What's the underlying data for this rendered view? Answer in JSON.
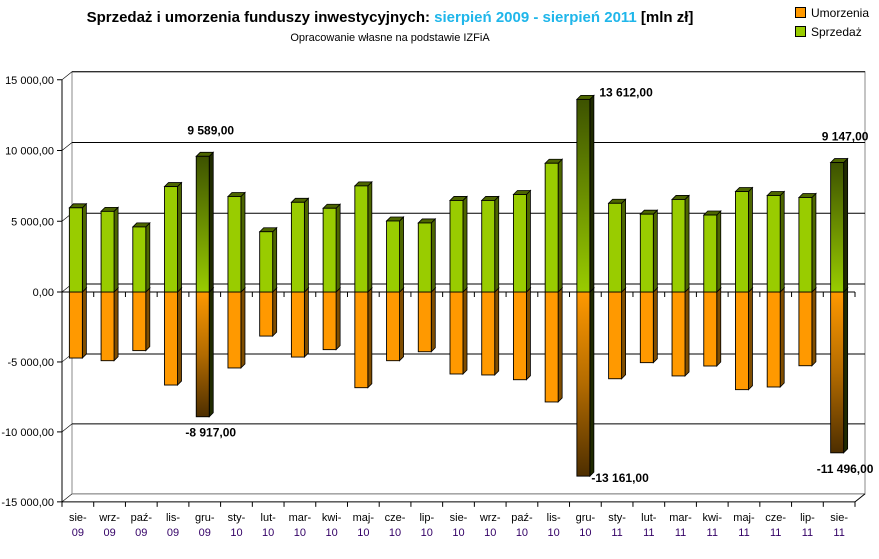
{
  "chart_data": {
    "type": "bar",
    "title_main": "Sprzedaż i umorzenia funduszy inwestycyjnych: ",
    "title_highlight": "sierpień 2009 - sierpień 2011",
    "title_unit": " [mln zł]",
    "subtitle": "Opracowanie własne na podstawie IZFiA",
    "ylim": [
      -15000,
      15000
    ],
    "yticks": [
      15000,
      10000,
      5000,
      0,
      -5000,
      -10000,
      -15000
    ],
    "ytick_labels": [
      "15 000,00",
      "10 000,00",
      "5 000,00",
      "0,00",
      "-5 000,00",
      "-10 000,00",
      "-15 000,00"
    ],
    "grid": true,
    "legend_position": "top-right",
    "categories": [
      [
        "sie-",
        "09"
      ],
      [
        "wrz-",
        "09"
      ],
      [
        "paź-",
        "09"
      ],
      [
        "lis-",
        "09"
      ],
      [
        "gru-",
        "09"
      ],
      [
        "sty-",
        "10"
      ],
      [
        "lut-",
        "10"
      ],
      [
        "mar-",
        "10"
      ],
      [
        "kwi-",
        "10"
      ],
      [
        "maj-",
        "10"
      ],
      [
        "cze-",
        "10"
      ],
      [
        "lip-",
        "10"
      ],
      [
        "sie-",
        "10"
      ],
      [
        "wrz-",
        "10"
      ],
      [
        "paź-",
        "10"
      ],
      [
        "lis-",
        "10"
      ],
      [
        "gru-",
        "10"
      ],
      [
        "sty-",
        "11"
      ],
      [
        "lut-",
        "11"
      ],
      [
        "mar-",
        "11"
      ],
      [
        "kwi-",
        "11"
      ],
      [
        "maj-",
        "11"
      ],
      [
        "cze-",
        "11"
      ],
      [
        "lip-",
        "11"
      ],
      [
        "sie-",
        "11"
      ]
    ],
    "series": [
      {
        "name": "Umorzenia",
        "color": "#ff9900",
        "values": [
          -4720,
          -4910,
          -4190,
          -6650,
          -8917,
          -5430,
          -3150,
          -4650,
          -4120,
          -6840,
          -4910,
          -4270,
          -5860,
          -5930,
          -6270,
          -7860,
          -13161,
          -6200,
          -5050,
          -6000,
          -5290,
          -6980,
          -6790,
          -5270,
          -11496
        ]
      },
      {
        "name": "Sprzedaż",
        "color": "#99cc00",
        "values": [
          5950,
          5700,
          4600,
          7450,
          9589,
          6750,
          4260,
          6340,
          5920,
          7500,
          5020,
          4880,
          6470,
          6470,
          6890,
          9100,
          13612,
          6270,
          5500,
          6540,
          5440,
          7100,
          6820,
          6680,
          9147
        ]
      }
    ],
    "highlighted": [
      4,
      16,
      24
    ],
    "data_labels": [
      {
        "series": 1,
        "index": 4,
        "text": "9 589,00"
      },
      {
        "series": 0,
        "index": 4,
        "text": "-8 917,00"
      },
      {
        "series": 1,
        "index": 16,
        "text": "13 612,00"
      },
      {
        "series": 0,
        "index": 16,
        "text": "-13 161,00"
      },
      {
        "series": 1,
        "index": 24,
        "text": "9 147,00"
      },
      {
        "series": 0,
        "index": 24,
        "text": "-11 496,00"
      }
    ]
  }
}
